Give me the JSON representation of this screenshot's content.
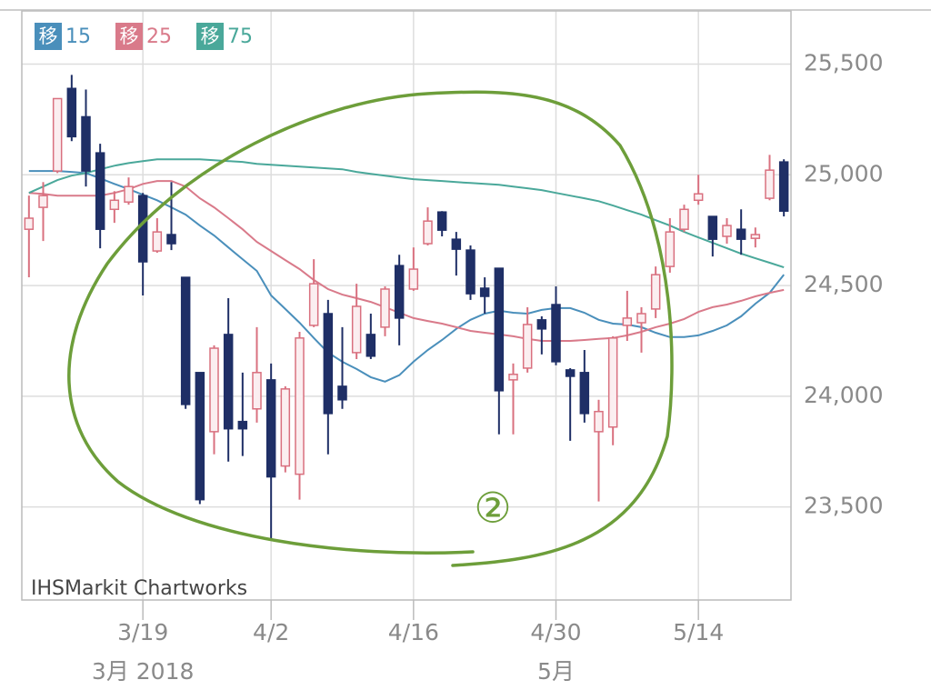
{
  "chart_data": {
    "type": "candlestick",
    "watermark": "IHSMarkit Chartworks",
    "annotation": "②",
    "legend_badge": "移",
    "categories": [
      null,
      null,
      null,
      null,
      null,
      null,
      null,
      null,
      "3/19",
      null,
      null,
      null,
      null,
      null,
      null,
      null,
      null,
      "4/2",
      null,
      null,
      null,
      null,
      null,
      null,
      null,
      null,
      null,
      "4/16",
      null,
      null,
      null,
      null,
      null,
      null,
      null,
      null,
      null,
      "4/30",
      null,
      null,
      null,
      null,
      null,
      null,
      null,
      null,
      null,
      "5/14",
      null,
      null,
      null,
      null,
      null,
      null
    ],
    "category_sublabels": [
      null,
      null,
      null,
      null,
      null,
      null,
      null,
      null,
      "3月 2018",
      null,
      null,
      null,
      null,
      null,
      null,
      null,
      null,
      null,
      null,
      null,
      null,
      null,
      null,
      null,
      null,
      null,
      null,
      null,
      null,
      null,
      null,
      null,
      null,
      null,
      null,
      null,
      null,
      "5月",
      null,
      null,
      null,
      null,
      null,
      null,
      null,
      null,
      null,
      null,
      null,
      null,
      null,
      null,
      null,
      null
    ],
    "open": [
      24754,
      24853,
      25017,
      25390,
      25262,
      25099,
      24844,
      24877,
      24906,
      24656,
      24730,
      24537,
      24107,
      23840,
      24279,
      23886,
      23943,
      24074,
      23685,
      23648,
      24320,
      24373,
      24045,
      24197,
      24279,
      24312,
      24590,
      24484,
      24689,
      24832,
      24709,
      24660,
      24488,
      24578,
      24074,
      24127,
      24345,
      24414,
      24119,
      24107,
      23840,
      23861,
      24320,
      24332,
      24394,
      24586,
      24754,
      24885,
      24812,
      24722,
      24754,
      24713,
      24894,
      25058
    ],
    "high": [
      24906,
      24967,
      25344,
      25451,
      25385,
      25140,
      24926,
      24988,
      24918,
      24804,
      24967,
      24537,
      24107,
      24230,
      24443,
      24107,
      24312,
      24148,
      24045,
      24291,
      24619,
      24435,
      24312,
      24508,
      24373,
      24496,
      24639,
      24672,
      24853,
      24836,
      24742,
      24681,
      24537,
      24578,
      24148,
      24402,
      24361,
      24496,
      24127,
      24209,
      23984,
      24271,
      24476,
      24402,
      24586,
      24804,
      24865,
      25000,
      24812,
      24804,
      24844,
      24762,
      25090,
      25070
    ],
    "low": [
      24537,
      24701,
      25008,
      25152,
      24947,
      24668,
      24783,
      24865,
      24455,
      24648,
      24660,
      23943,
      23513,
      23738,
      23705,
      23730,
      23881,
      23349,
      23656,
      23533,
      24312,
      23738,
      23943,
      24168,
      24168,
      24271,
      24230,
      24476,
      24681,
      24722,
      24545,
      24435,
      24373,
      23828,
      23828,
      24107,
      24189,
      24140,
      23799,
      23881,
      23525,
      23779,
      24250,
      24197,
      24353,
      24558,
      24742,
      24865,
      24631,
      24689,
      24639,
      24672,
      24885,
      24812
    ],
    "close": [
      24804,
      24906,
      25344,
      25172,
      25017,
      24754,
      24885,
      24947,
      24607,
      24742,
      24689,
      23963,
      23533,
      24217,
      23853,
      23853,
      24107,
      23636,
      24033,
      24263,
      24508,
      23922,
      23984,
      24406,
      24181,
      24484,
      24353,
      24574,
      24791,
      24750,
      24664,
      24463,
      24451,
      24025,
      24099,
      24324,
      24304,
      24156,
      24090,
      23922,
      23931,
      24263,
      24353,
      24373,
      24549,
      24742,
      24844,
      24914,
      24709,
      24771,
      24709,
      24730,
      25021,
      24836
    ],
    "up_color": "#d9707f",
    "down_color": "#1f2f66",
    "series": [
      {
        "name": "15",
        "color": "#4a8fbb",
        "values": [
          25017,
          25017,
          25017,
          25013,
          25008,
          24984,
          24959,
          24935,
          24910,
          24885,
          24853,
          24820,
          24771,
          24726,
          24672,
          24619,
          24566,
          24455,
          24394,
          24332,
          24263,
          24197,
          24156,
          24123,
          24086,
          24066,
          24095,
          24156,
          24209,
          24254,
          24304,
          24345,
          24373,
          24386,
          24377,
          24373,
          24390,
          24398,
          24398,
          24377,
          24345,
          24328,
          24324,
          24312,
          24287,
          24267,
          24267,
          24275,
          24295,
          24320,
          24361,
          24418,
          24467,
          24549
        ]
      },
      {
        "name": "25",
        "color": "#d97a8a",
        "values": [
          24918,
          24914,
          24906,
          24906,
          24906,
          24906,
          24918,
          24935,
          24959,
          24972,
          24972,
          24947,
          24894,
          24853,
          24804,
          24754,
          24697,
          24656,
          24615,
          24574,
          24525,
          24484,
          24459,
          24443,
          24426,
          24402,
          24377,
          24353,
          24340,
          24328,
          24312,
          24295,
          24287,
          24279,
          24271,
          24259,
          24250,
          24250,
          24250,
          24254,
          24259,
          24263,
          24275,
          24291,
          24312,
          24328,
          24349,
          24381,
          24402,
          24414,
          24431,
          24451,
          24467,
          24480
        ]
      },
      {
        "name": "75",
        "color": "#4aa89a",
        "values": [
          24918,
          24947,
          24976,
          24996,
          25008,
          25025,
          25041,
          25053,
          25062,
          25070,
          25070,
          25070,
          25070,
          25066,
          25062,
          25058,
          25049,
          25045,
          25041,
          25037,
          25033,
          25029,
          25025,
          25013,
          25004,
          24996,
          24988,
          24980,
          24976,
          24972,
          24967,
          24963,
          24959,
          24955,
          24947,
          24939,
          24931,
          24918,
          24906,
          24894,
          24881,
          24861,
          24840,
          24820,
          24795,
          24771,
          24742,
          24717,
          24693,
          24668,
          24644,
          24623,
          24603,
          24582
        ]
      }
    ],
    "ylim": [
      23080,
      25740
    ],
    "yticks": [
      {
        "value": 23500,
        "label": "23,500"
      },
      {
        "value": 24000,
        "label": "24,000"
      },
      {
        "value": 24500,
        "label": "24,500"
      },
      {
        "value": 25000,
        "label": "25,000"
      },
      {
        "value": 25500,
        "label": "25,500"
      }
    ],
    "grid": true
  }
}
